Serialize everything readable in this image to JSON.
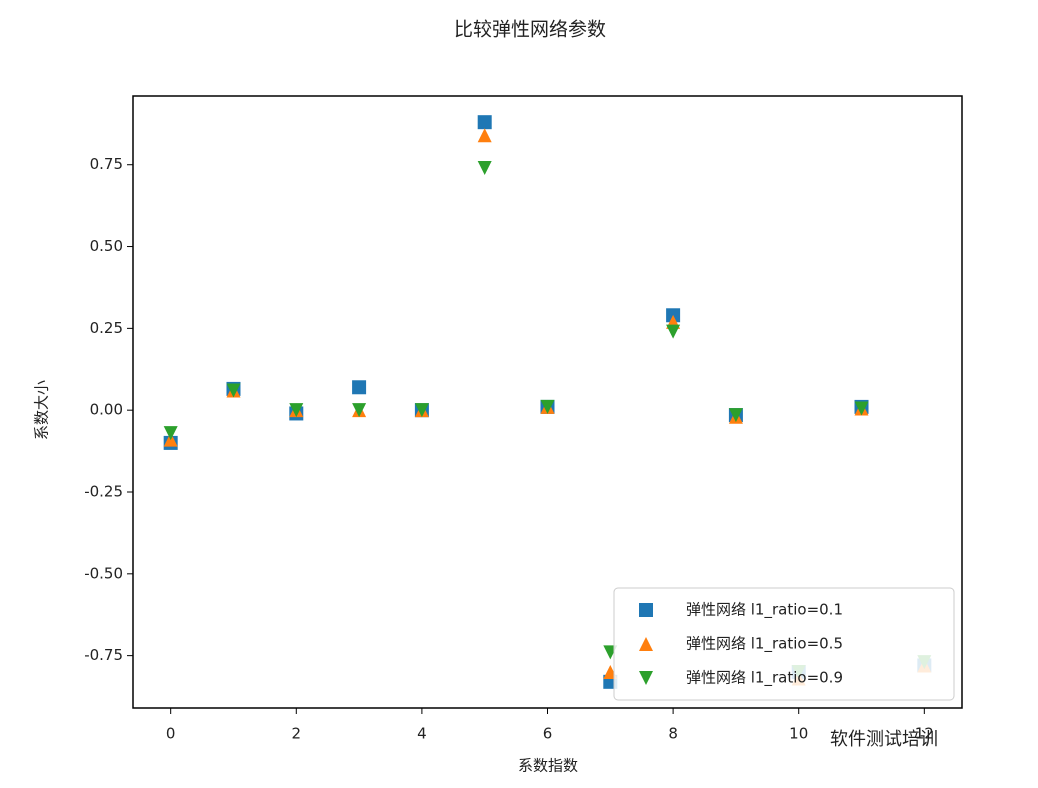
{
  "chart_data": {
    "type": "scatter",
    "title": "比较弹性网络参数",
    "xlabel": "系数指数",
    "ylabel": "系数大小",
    "x": [
      0,
      1,
      2,
      3,
      4,
      5,
      6,
      7,
      8,
      9,
      10,
      11,
      12
    ],
    "series": [
      {
        "name": "弹性网络 l1_ratio=0.1",
        "color": "#1f77b4",
        "marker": "square",
        "values": [
          -0.1,
          0.065,
          -0.01,
          0.07,
          0.0,
          0.88,
          0.01,
          -0.83,
          0.29,
          -0.015,
          -0.8,
          0.01,
          -0.78
        ]
      },
      {
        "name": "弹性网络 l1_ratio=0.5",
        "color": "#ff7f0e",
        "marker": "triangle-up",
        "values": [
          -0.09,
          0.06,
          0.0,
          0.0,
          0.0,
          0.84,
          0.01,
          -0.8,
          0.27,
          -0.02,
          -0.82,
          0.005,
          -0.78
        ]
      },
      {
        "name": "弹性网络 l1_ratio=0.9",
        "color": "#2ca02c",
        "marker": "triangle-down",
        "values": [
          -0.07,
          0.06,
          0.0,
          0.0,
          0.0,
          0.74,
          0.01,
          -0.74,
          0.24,
          -0.015,
          -0.8,
          0.005,
          -0.77
        ]
      }
    ],
    "xlim": [
      -0.6,
      12.6
    ],
    "xticks": [
      0,
      2,
      4,
      6,
      8,
      10,
      12
    ],
    "ylim": [
      -0.91,
      0.96
    ],
    "yticks": [
      {
        "value": -0.75,
        "label": "-0.75"
      },
      {
        "value": -0.5,
        "label": "-0.50"
      },
      -0.25,
      {
        "value": 0,
        "label": "0.00"
      },
      0.25,
      {
        "value": 0.5,
        "label": "0.50"
      },
      0.75
    ],
    "legend": "lower right",
    "watermark": "软件测试培训"
  }
}
